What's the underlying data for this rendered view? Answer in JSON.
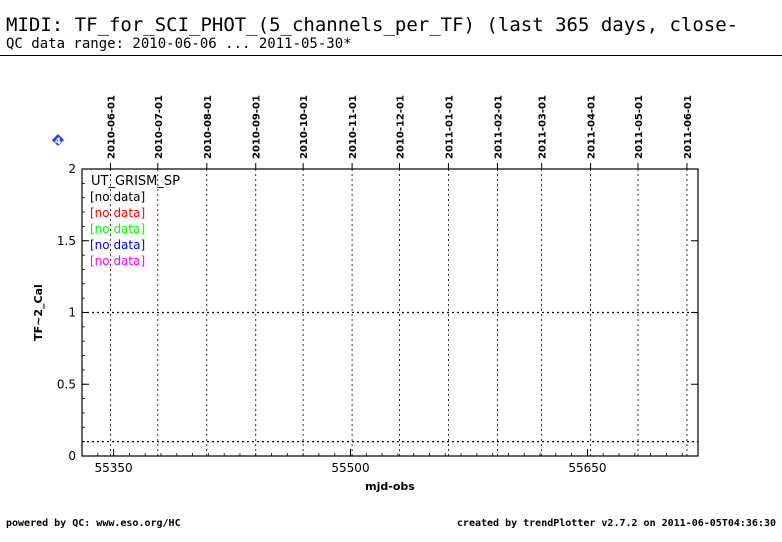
{
  "header": {
    "title": "MIDI: TF_for_SCI_PHOT_(5_channels_per_TF) (last 365 days, close-",
    "subtitle": "QC data range: 2010-06-06 ... 2011-05-30*"
  },
  "footer": {
    "left": "powered by QC: www.eso.org/HC",
    "right": "created by trendPlotter v2.7.2 on 2011-06-05T04:36:30"
  },
  "marker_label": "4",
  "chart_data": {
    "type": "scatter",
    "xlabel": "mjd-obs",
    "ylabel": "TF~2_Cal",
    "xlim": [
      55330,
      55720
    ],
    "ylim": [
      0,
      2
    ],
    "x_ticks": [
      55350,
      55500,
      55650
    ],
    "y_ticks": [
      0,
      0.5,
      1,
      1.5,
      2
    ],
    "top_date_ticks": [
      {
        "label": "2010-06-01",
        "mjd": 55348
      },
      {
        "label": "2010-07-01",
        "mjd": 55378
      },
      {
        "label": "2010-08-01",
        "mjd": 55409
      },
      {
        "label": "2010-09-01",
        "mjd": 55440
      },
      {
        "label": "2010-10-01",
        "mjd": 55470
      },
      {
        "label": "2010-11-01",
        "mjd": 55501
      },
      {
        "label": "2010-12-01",
        "mjd": 55531
      },
      {
        "label": "2011-01-01",
        "mjd": 55562
      },
      {
        "label": "2011-02-01",
        "mjd": 55593
      },
      {
        "label": "2011-03-01",
        "mjd": 55621
      },
      {
        "label": "2011-04-01",
        "mjd": 55652
      },
      {
        "label": "2011-05-01",
        "mjd": 55682
      },
      {
        "label": "2011-06-01",
        "mjd": 55713
      }
    ],
    "reference_lines": [
      1,
      0.1
    ],
    "legend_title": "UT_GRISM_SP",
    "series": [
      {
        "label": "[no data]",
        "color": "#000000",
        "values": []
      },
      {
        "label": "[no data]",
        "color": "#ff0000",
        "values": []
      },
      {
        "label": "[no data]",
        "color": "#00ff00",
        "values": []
      },
      {
        "label": "[no data]",
        "color": "#0000ff",
        "values": []
      },
      {
        "label": "[no data]",
        "color": "#ff00ff",
        "values": []
      }
    ],
    "grid": true,
    "legend_position": "top-left"
  }
}
